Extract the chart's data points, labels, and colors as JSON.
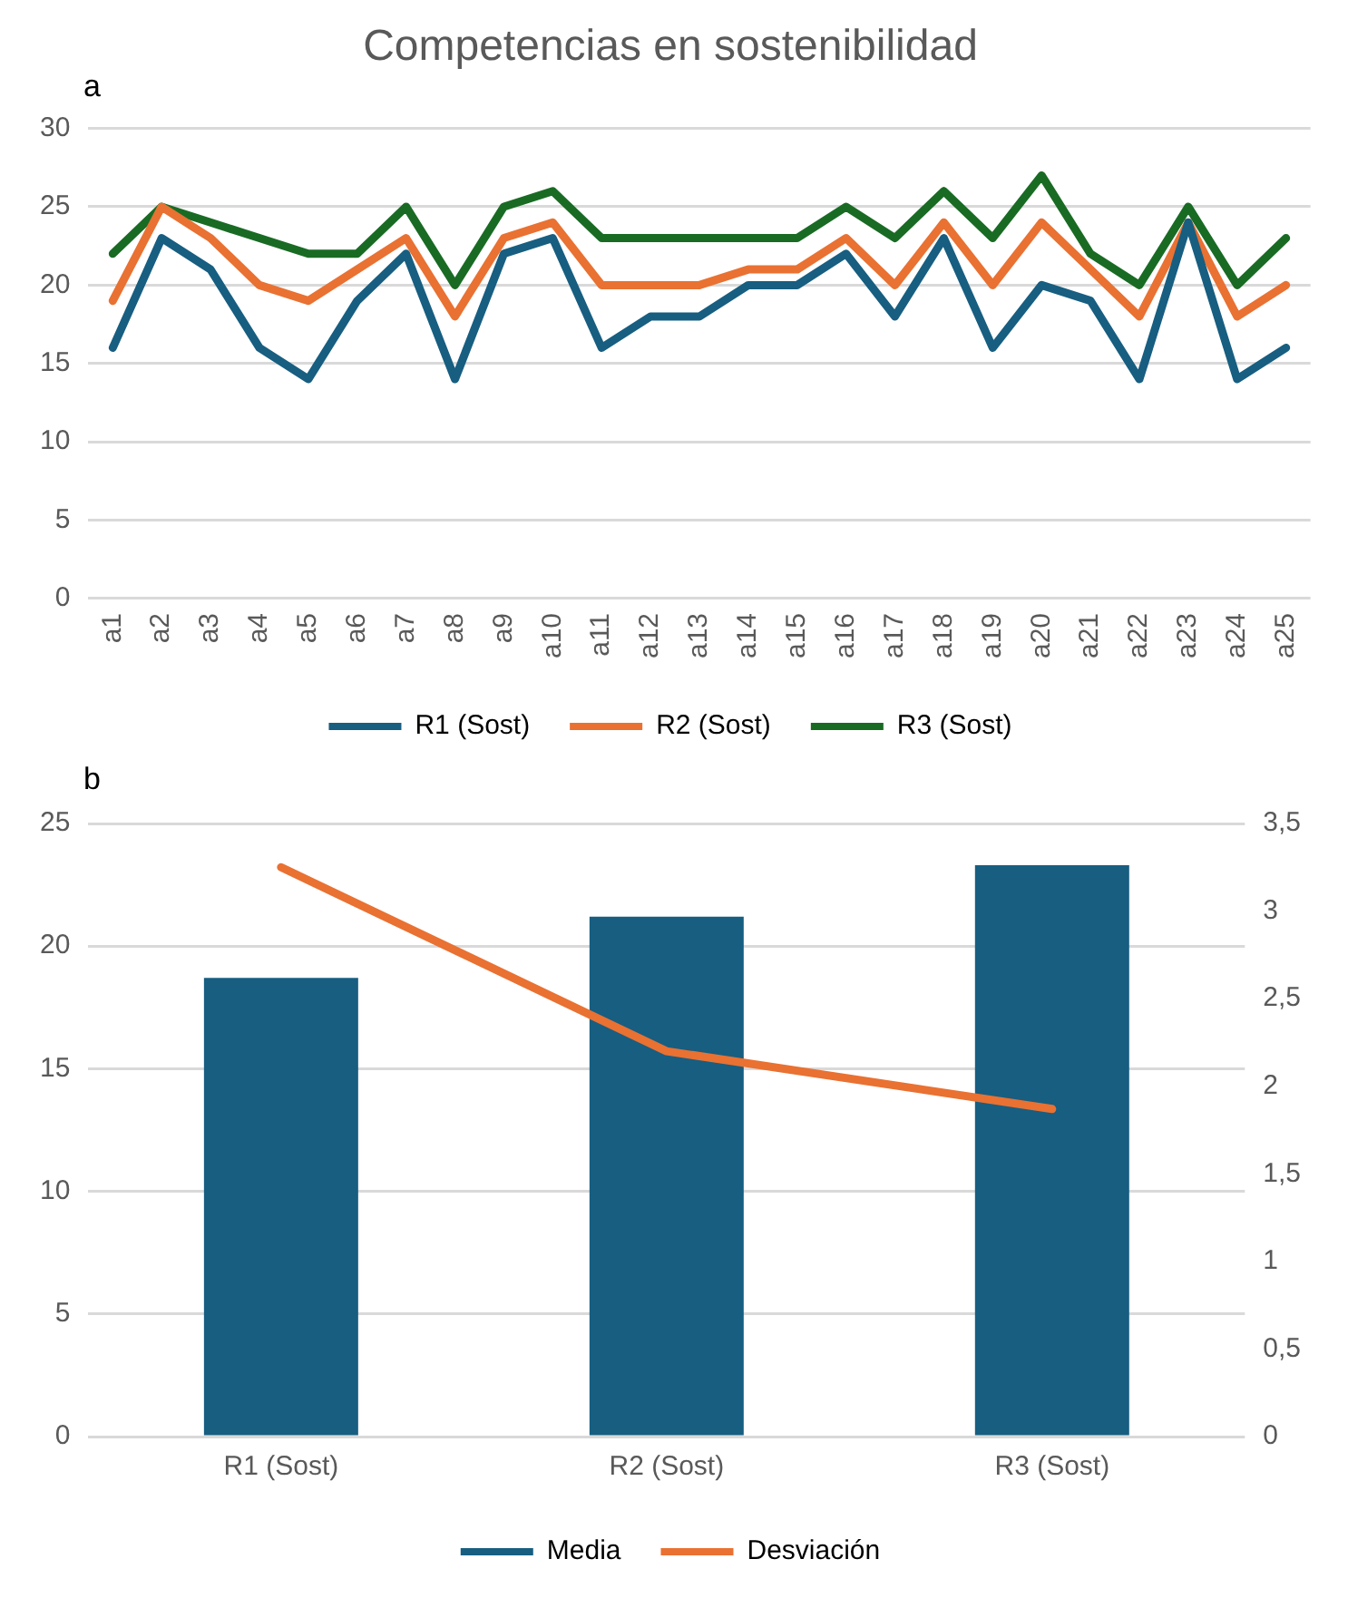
{
  "chart_data": [
    {
      "type": "line",
      "title": "Competencias en sostenibilidad",
      "annotations": [
        "a"
      ],
      "categories": [
        "a1",
        "a2",
        "a3",
        "a4",
        "a5",
        "a6",
        "a7",
        "a8",
        "a9",
        "a10",
        "a11",
        "a12",
        "a13",
        "a14",
        "a15",
        "a16",
        "a17",
        "a18",
        "a19",
        "a20",
        "a21",
        "a22",
        "a23",
        "a24",
        "a25"
      ],
      "series": [
        {
          "name": "R1 (Sost)",
          "color": "#175e81",
          "values": [
            16,
            23,
            21,
            16,
            14,
            19,
            22,
            14,
            22,
            23,
            16,
            18,
            18,
            20,
            20,
            22,
            18,
            23,
            16,
            20,
            19,
            14,
            24,
            14,
            16
          ]
        },
        {
          "name": "R2 (Sost)",
          "color": "#e97132",
          "values": [
            19,
            25,
            23,
            20,
            19,
            21,
            23,
            18,
            23,
            24,
            20,
            20,
            20,
            21,
            21,
            23,
            20,
            24,
            20,
            24,
            21,
            18,
            24,
            18,
            20
          ]
        },
        {
          "name": "R3 (Sost)",
          "color": "#196b24",
          "values": [
            22,
            25,
            24,
            23,
            22,
            22,
            25,
            20,
            25,
            26,
            23,
            23,
            23,
            23,
            23,
            25,
            23,
            26,
            23,
            27,
            22,
            20,
            25,
            20,
            23
          ]
        }
      ],
      "ylim": [
        0,
        30
      ],
      "yticks": [
        0,
        5,
        10,
        15,
        20,
        25,
        30
      ],
      "grid": "y",
      "legend": "bottom",
      "marker": "none",
      "line_style": "solid"
    },
    {
      "type": "bar",
      "annotations": [
        "b"
      ],
      "categories": [
        "R1 (Sost)",
        "R2 (Sost)",
        "R3 (Sost)"
      ],
      "series": [
        {
          "name": "Media",
          "type": "bar",
          "color": "#175e81",
          "values": [
            18.7,
            21.2,
            23.3
          ]
        },
        {
          "name": "Desviación",
          "type": "line",
          "axis": "y2",
          "color": "#e97132",
          "values": [
            3.25,
            2.2,
            1.87
          ]
        }
      ],
      "ylim": [
        0,
        25
      ],
      "yticks": [
        0,
        5,
        10,
        15,
        20,
        25
      ],
      "y2lim": [
        0,
        3.5
      ],
      "y2ticks": [
        0,
        {
          "value": 0.5,
          "label": "0,5"
        },
        1,
        {
          "value": 1.5,
          "label": "1,5"
        },
        2,
        {
          "value": 2.5,
          "label": "2,5"
        },
        3,
        {
          "value": 3.5,
          "label": "3,5"
        }
      ],
      "grid": "y",
      "legend": "bottom",
      "marker": "none",
      "line_style": "solid"
    }
  ]
}
